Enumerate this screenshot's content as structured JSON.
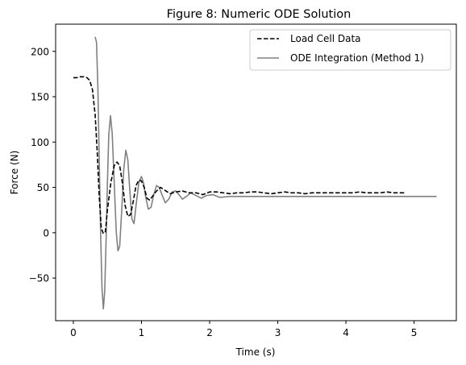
{
  "chart_data": {
    "type": "line",
    "title": "Figure 8: Numeric ODE Solution",
    "xlabel": "Time (s)",
    "ylabel": "Force (N)",
    "xlim": [
      -0.26,
      5.62
    ],
    "ylim": [
      -97,
      230
    ],
    "xticks": [
      0,
      1,
      2,
      3,
      4,
      5
    ],
    "yticks": [
      -50,
      0,
      50,
      100,
      150,
      200
    ],
    "xtick_labels": [
      "0",
      "1",
      "2",
      "3",
      "4",
      "5"
    ],
    "ytick_labels": [
      "−50",
      "0",
      "50",
      "100",
      "150",
      "200"
    ],
    "grid": false,
    "legend_position": "top-right",
    "series": [
      {
        "name": "Load Cell Data",
        "color": "#000000",
        "style": "dashed",
        "points": [
          [
            0.0,
            171
          ],
          [
            0.05,
            171
          ],
          [
            0.1,
            172
          ],
          [
            0.15,
            172
          ],
          [
            0.2,
            171
          ],
          [
            0.24,
            168
          ],
          [
            0.28,
            158
          ],
          [
            0.32,
            130
          ],
          [
            0.35,
            90
          ],
          [
            0.38,
            40
          ],
          [
            0.41,
            5
          ],
          [
            0.44,
            -1
          ],
          [
            0.47,
            1
          ],
          [
            0.5,
            25
          ],
          [
            0.55,
            55
          ],
          [
            0.6,
            74
          ],
          [
            0.64,
            78
          ],
          [
            0.68,
            74
          ],
          [
            0.72,
            55
          ],
          [
            0.76,
            30
          ],
          [
            0.8,
            18
          ],
          [
            0.84,
            20
          ],
          [
            0.88,
            35
          ],
          [
            0.92,
            52
          ],
          [
            0.96,
            58
          ],
          [
            1.0,
            57
          ],
          [
            1.04,
            50
          ],
          [
            1.08,
            38
          ],
          [
            1.12,
            36
          ],
          [
            1.16,
            40
          ],
          [
            1.22,
            46
          ],
          [
            1.28,
            50
          ],
          [
            1.34,
            47
          ],
          [
            1.42,
            43
          ],
          [
            1.5,
            45
          ],
          [
            1.6,
            46
          ],
          [
            1.7,
            44
          ],
          [
            1.8,
            44
          ],
          [
            1.9,
            42
          ],
          [
            2.0,
            45
          ],
          [
            2.1,
            45
          ],
          [
            2.2,
            44
          ],
          [
            2.3,
            43
          ],
          [
            2.4,
            44
          ],
          [
            2.5,
            44
          ],
          [
            2.6,
            45
          ],
          [
            2.7,
            45
          ],
          [
            2.8,
            44
          ],
          [
            2.9,
            43
          ],
          [
            3.0,
            44
          ],
          [
            3.1,
            45
          ],
          [
            3.2,
            44
          ],
          [
            3.3,
            44
          ],
          [
            3.4,
            43
          ],
          [
            3.5,
            44
          ],
          [
            3.6,
            44
          ],
          [
            3.7,
            44
          ],
          [
            3.8,
            44
          ],
          [
            3.9,
            44
          ],
          [
            4.0,
            44
          ],
          [
            4.1,
            44
          ],
          [
            4.2,
            45
          ],
          [
            4.3,
            44
          ],
          [
            4.4,
            44
          ],
          [
            4.5,
            44
          ],
          [
            4.6,
            45
          ],
          [
            4.7,
            44
          ],
          [
            4.8,
            44
          ],
          [
            4.88,
            44
          ]
        ]
      },
      {
        "name": "ODE Integration (Method 1)",
        "color": "#808080",
        "style": "solid",
        "points": [
          [
            0.32,
            216
          ],
          [
            0.34,
            210
          ],
          [
            0.36,
            160
          ],
          [
            0.38,
            80
          ],
          [
            0.4,
            0
          ],
          [
            0.42,
            -60
          ],
          [
            0.44,
            -84
          ],
          [
            0.46,
            -65
          ],
          [
            0.48,
            -10
          ],
          [
            0.5,
            55
          ],
          [
            0.52,
            108
          ],
          [
            0.545,
            129
          ],
          [
            0.57,
            110
          ],
          [
            0.6,
            55
          ],
          [
            0.63,
            0
          ],
          [
            0.655,
            -20
          ],
          [
            0.68,
            -15
          ],
          [
            0.71,
            25
          ],
          [
            0.74,
            70
          ],
          [
            0.77,
            91
          ],
          [
            0.8,
            80
          ],
          [
            0.83,
            45
          ],
          [
            0.86,
            15
          ],
          [
            0.89,
            10
          ],
          [
            0.92,
            30
          ],
          [
            0.96,
            55
          ],
          [
            1.0,
            62
          ],
          [
            1.03,
            55
          ],
          [
            1.06,
            40
          ],
          [
            1.1,
            26
          ],
          [
            1.14,
            28
          ],
          [
            1.18,
            42
          ],
          [
            1.22,
            52
          ],
          [
            1.26,
            50
          ],
          [
            1.3,
            42
          ],
          [
            1.35,
            33
          ],
          [
            1.4,
            37
          ],
          [
            1.45,
            45
          ],
          [
            1.5,
            46
          ],
          [
            1.55,
            42
          ],
          [
            1.6,
            37
          ],
          [
            1.66,
            40
          ],
          [
            1.72,
            44
          ],
          [
            1.8,
            41
          ],
          [
            1.88,
            38
          ],
          [
            1.95,
            41
          ],
          [
            2.05,
            42
          ],
          [
            2.15,
            39
          ],
          [
            2.3,
            40
          ],
          [
            2.5,
            40
          ],
          [
            3.0,
            40
          ],
          [
            3.5,
            40
          ],
          [
            4.0,
            40
          ],
          [
            4.5,
            40
          ],
          [
            5.0,
            40
          ],
          [
            5.33,
            40
          ]
        ]
      }
    ]
  }
}
